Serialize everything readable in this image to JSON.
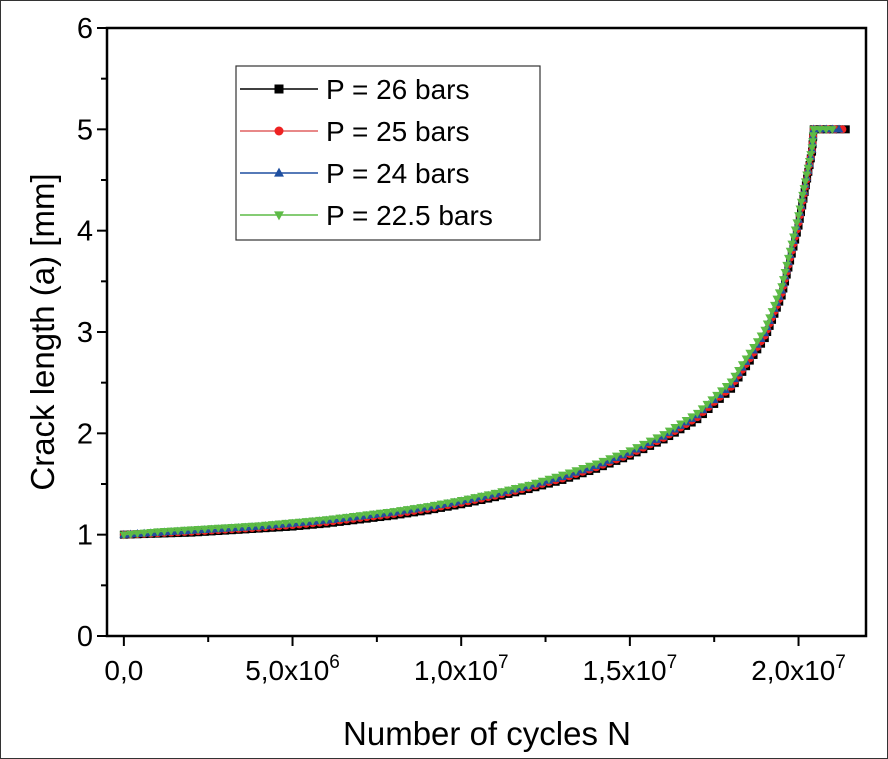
{
  "chart_data": {
    "type": "line",
    "title": "",
    "xlabel": "Number of cycles  N",
    "ylabel": "Crack length  (a)    [mm]",
    "xlim": [
      -500000,
      22000000
    ],
    "ylim": [
      0,
      6
    ],
    "grid": false,
    "legend_position": "top-left",
    "x_ticks": [
      {
        "value": 0,
        "base": "0,0",
        "exp": ""
      },
      {
        "value": 5000000,
        "base": "5,0x10",
        "exp": "6"
      },
      {
        "value": 10000000,
        "base": "1,0x10",
        "exp": "7"
      },
      {
        "value": 15000000,
        "base": "1,5x10",
        "exp": "7"
      },
      {
        "value": 20000000,
        "base": "2,0x10",
        "exp": "7"
      }
    ],
    "y_ticks": [
      {
        "value": 0,
        "label": "0"
      },
      {
        "value": 1,
        "label": "1"
      },
      {
        "value": 2,
        "label": "2"
      },
      {
        "value": 3,
        "label": "3"
      },
      {
        "value": 4,
        "label": "4"
      },
      {
        "value": 5,
        "label": "5"
      },
      {
        "value": 6,
        "label": "6"
      }
    ],
    "series": [
      {
        "name": "P = 26 bars",
        "color": "#000000",
        "line_color": "#000000",
        "marker": "square",
        "x": [
          0,
          1000000,
          2000000,
          3000000,
          4000000,
          5000000,
          6000000,
          7000000,
          8000000,
          9000000,
          10000000,
          11000000,
          12000000,
          13000000,
          14000000,
          15000000,
          16000000,
          17000000,
          18000000,
          19000000,
          19500000,
          20000000,
          20400000,
          20450000,
          21400000
        ],
        "y": [
          1.0,
          1.01,
          1.02,
          1.04,
          1.06,
          1.08,
          1.11,
          1.15,
          1.19,
          1.24,
          1.3,
          1.37,
          1.45,
          1.54,
          1.65,
          1.78,
          1.94,
          2.14,
          2.44,
          2.94,
          3.36,
          4.05,
          4.78,
          5.0,
          5.0
        ]
      },
      {
        "name": "P = 25 bars",
        "color": "#ee2222",
        "line_color": "#e06060",
        "marker": "circle",
        "x": [
          0,
          1000000,
          2000000,
          3000000,
          4000000,
          5000000,
          6000000,
          7000000,
          8000000,
          9000000,
          10000000,
          11000000,
          12000000,
          13000000,
          14000000,
          15000000,
          16000000,
          17000000,
          18000000,
          19000000,
          19500000,
          20000000,
          20400000,
          20450000,
          21300000
        ],
        "y": [
          1.0,
          1.015,
          1.03,
          1.05,
          1.07,
          1.095,
          1.125,
          1.165,
          1.205,
          1.255,
          1.315,
          1.385,
          1.465,
          1.555,
          1.665,
          1.795,
          1.955,
          2.16,
          2.46,
          2.965,
          3.385,
          4.08,
          4.79,
          5.0,
          5.0
        ]
      },
      {
        "name": "P = 24 bars",
        "color": "#1f4fa0",
        "line_color": "#1f4fa0",
        "marker": "triangle-up",
        "x": [
          0,
          1000000,
          2000000,
          3000000,
          4000000,
          5000000,
          6000000,
          7000000,
          8000000,
          9000000,
          10000000,
          11000000,
          12000000,
          13000000,
          14000000,
          15000000,
          16000000,
          17000000,
          18000000,
          19000000,
          19500000,
          20000000,
          20400000,
          20450000,
          21200000
        ],
        "y": [
          1.0,
          1.02,
          1.04,
          1.06,
          1.08,
          1.11,
          1.14,
          1.18,
          1.22,
          1.27,
          1.33,
          1.4,
          1.48,
          1.57,
          1.68,
          1.81,
          1.97,
          2.18,
          2.48,
          2.99,
          3.41,
          4.11,
          4.8,
          5.0,
          5.0
        ]
      },
      {
        "name": "P = 22.5 bars",
        "color": "#5dbb46",
        "line_color": "#5dbb46",
        "marker": "triangle-down",
        "x": [
          0,
          1000000,
          2000000,
          3000000,
          4000000,
          5000000,
          6000000,
          7000000,
          8000000,
          9000000,
          10000000,
          11000000,
          12000000,
          13000000,
          14000000,
          15000000,
          16000000,
          17000000,
          18000000,
          19000000,
          19500000,
          20000000,
          20400000,
          20450000,
          21000000
        ],
        "y": [
          1.0,
          1.03,
          1.05,
          1.07,
          1.09,
          1.12,
          1.15,
          1.19,
          1.23,
          1.28,
          1.34,
          1.41,
          1.49,
          1.59,
          1.7,
          1.83,
          1.99,
          2.2,
          2.51,
          3.02,
          3.45,
          4.15,
          4.82,
          5.0,
          5.0
        ]
      }
    ]
  }
}
